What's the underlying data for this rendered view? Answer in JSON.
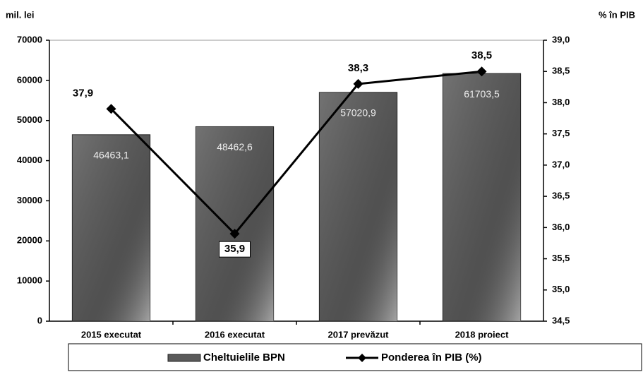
{
  "chart_data": {
    "type": "bar",
    "y_label": "mil. lei",
    "y2_label": "% în PIB",
    "categories": [
      "2015 executat",
      "2016 executat",
      "2017 prevăzut",
      "2018 proiect"
    ],
    "series": [
      {
        "name": "Cheltuielile BPN",
        "color": "#5a5a5a",
        "values": [
          46463.1,
          48462.6,
          57020.9,
          61703.5
        ],
        "value_labels": [
          "46463,1",
          "48462,6",
          "57020,9",
          "61703,5"
        ]
      },
      {
        "name": "Ponderea în PIB (%)",
        "type": "line",
        "axis": "y2",
        "color": "#000000",
        "values": [
          37.9,
          35.9,
          38.3,
          38.5
        ],
        "value_labels": [
          "37,9",
          "35,9",
          "38,3",
          "38,5"
        ]
      }
    ],
    "ylim": [
      0,
      70000
    ],
    "yticks": [
      0,
      10000,
      20000,
      30000,
      40000,
      50000,
      60000,
      70000
    ],
    "y2lim": [
      34.5,
      39.0
    ],
    "y2ticks": [
      {
        "value": 34.5,
        "label": "34,5"
      },
      {
        "value": 35.0,
        "label": "35,0"
      },
      {
        "value": 35.5,
        "label": "35,5"
      },
      {
        "value": 36.0,
        "label": "36,0"
      },
      {
        "value": 36.5,
        "label": "36,5"
      },
      {
        "value": 37.0,
        "label": "37,0"
      },
      {
        "value": 37.5,
        "label": "37,5"
      },
      {
        "value": 38.0,
        "label": "38,0"
      },
      {
        "value": 38.5,
        "label": "38,5"
      },
      {
        "value": 39.0,
        "label": "39,0"
      }
    ],
    "grid": false,
    "legend": "bottom"
  }
}
